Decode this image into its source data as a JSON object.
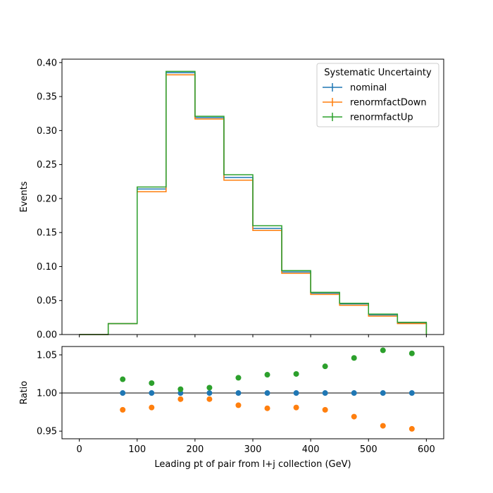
{
  "chart_data": [
    {
      "type": "line",
      "drawstyle": "step-histogram",
      "ylabel": "Events",
      "xlim": [
        -30,
        630
      ],
      "ylim": [
        0,
        0.405
      ],
      "bin_edges": [
        0,
        50,
        100,
        150,
        200,
        250,
        300,
        350,
        400,
        450,
        500,
        550,
        600
      ],
      "yticks": [
        "0.00",
        "0.05",
        "0.10",
        "0.15",
        "0.20",
        "0.25",
        "0.30",
        "0.35",
        "0.40"
      ],
      "legend": {
        "title": "Systematic Uncertainty",
        "placement": "top-right"
      },
      "series": [
        {
          "name": "nominal",
          "color": "#1f77b4",
          "values": [
            0.0,
            0.016,
            0.214,
            0.385,
            0.319,
            0.231,
            0.156,
            0.092,
            0.061,
            0.045,
            0.029,
            0.017
          ]
        },
        {
          "name": "renormfactDown",
          "color": "#ff7f0e",
          "values": [
            0.0,
            0.016,
            0.21,
            0.382,
            0.317,
            0.227,
            0.153,
            0.09,
            0.059,
            0.043,
            0.027,
            0.016
          ]
        },
        {
          "name": "renormfactUp",
          "color": "#2ca02c",
          "values": [
            0.0,
            0.016,
            0.217,
            0.387,
            0.321,
            0.235,
            0.16,
            0.094,
            0.062,
            0.046,
            0.03,
            0.018
          ]
        }
      ]
    },
    {
      "type": "scatter",
      "ylabel": "Ratio",
      "xlabel": "Leading pt of pair from l+j collection (GeV)",
      "xlim": [
        -30,
        630
      ],
      "ylim": [
        0.94,
        1.061
      ],
      "reference_line": 1.0,
      "x": [
        75,
        125,
        175,
        225,
        275,
        325,
        375,
        425,
        475,
        525,
        575
      ],
      "xticks": [
        "0",
        "100",
        "200",
        "300",
        "400",
        "500",
        "600"
      ],
      "yticks": [
        "0.95",
        "1.00",
        "1.05"
      ],
      "series": [
        {
          "name": "nominal",
          "color": "#1f77b4",
          "values": [
            1.0,
            1.0,
            1.0,
            1.0,
            1.0,
            1.0,
            1.0,
            1.0,
            1.0,
            1.0,
            1.0
          ]
        },
        {
          "name": "renormfactDown",
          "color": "#ff7f0e",
          "values": [
            0.978,
            0.981,
            0.992,
            0.992,
            0.984,
            0.98,
            0.981,
            0.978,
            0.969,
            0.957,
            0.953
          ]
        },
        {
          "name": "renormfactUp",
          "color": "#2ca02c",
          "values": [
            1.018,
            1.013,
            1.005,
            1.007,
            1.02,
            1.024,
            1.025,
            1.035,
            1.046,
            1.056,
            1.052
          ]
        }
      ]
    }
  ]
}
